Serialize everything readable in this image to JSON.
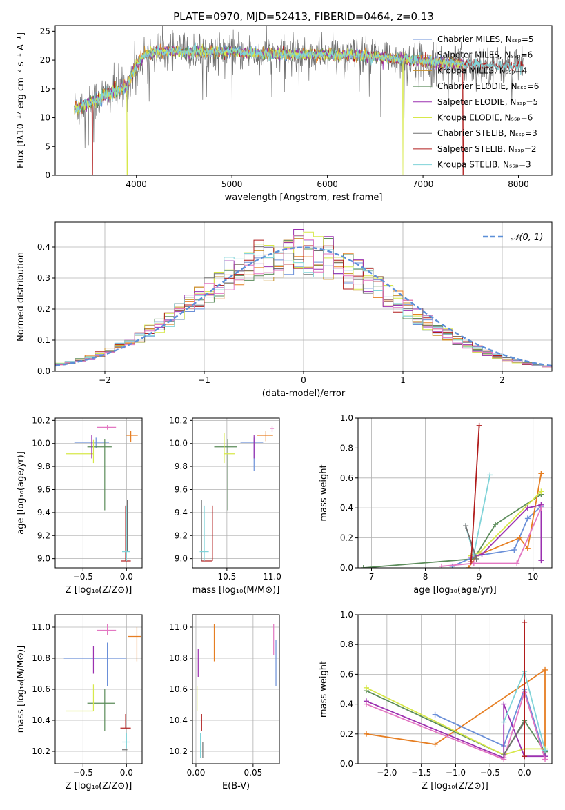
{
  "colors": {
    "Chabrier MILES": "#6a8fd8",
    "Salpeter MILES": "#e67e22",
    "Kroupa MILES": "#c8912a",
    "Chabrier ELODIE": "#5b8c5a",
    "Salpeter ELODIE": "#9b30b0",
    "Kroupa ELODIE": "#d7e84a",
    "Chabrier STELIB": "#707070",
    "Salpeter STELIB": "#b01c1c",
    "Kroupa STELIB": "#7fd3d8",
    "pink": "#e377c2",
    "gauss": "#5b8fd8"
  },
  "chart_data": [
    {
      "id": "spectrum",
      "type": "line",
      "title": "PLATE=0970, MJD=52413, FIBERID=0464, z=0.13",
      "xlabel": "wavelength [Angstrom, rest frame]",
      "ylabel": "Flux [fλ10⁻¹⁷ erg cm⁻² s⁻¹ A⁻¹]",
      "xlim": [
        3150,
        8350
      ],
      "ylim": [
        0,
        26
      ],
      "xticks": [
        4000,
        5000,
        6000,
        7000,
        8000
      ],
      "yticks": [
        0,
        5,
        10,
        15,
        20,
        25
      ],
      "grid": false,
      "legend_position": "top-right",
      "legend": [
        "Chabrier MILES, Nₛₛₚ=5",
        "Salpeter MILES, Nₛₛₚ=6",
        "Kroupa MILES, Nₛₛₚ=4",
        "Chabrier ELODIE, Nₛₛₚ=6",
        "Salpeter ELODIE, Nₛₛₚ=5",
        "Kroupa ELODIE, Nₛₛₚ=6",
        "Chabrier STELIB, Nₛₛₚ=3",
        "Salpeter STELIB, Nₛₛₚ=2",
        "Kroupa STELIB, Nₛₛₚ=3"
      ],
      "continuum": {
        "x": [
          3350,
          3500,
          3700,
          3900,
          4000,
          4100,
          4200,
          4400,
          4600,
          4800,
          5000,
          5200,
          5500,
          5800,
          6000,
          6300,
          6600,
          6900,
          7200,
          7500,
          7800,
          8050
        ],
        "y": [
          11.5,
          12.5,
          14,
          15.5,
          19,
          21,
          21.5,
          21.5,
          21.3,
          21.5,
          21.5,
          21.2,
          21,
          21,
          21,
          20.8,
          20.5,
          20,
          19.5,
          19.3,
          19,
          18.8
        ]
      }
    },
    {
      "id": "residuals",
      "type": "step-histogram",
      "xlabel": "(data-model)/error",
      "ylabel": "Normed distribution",
      "xlim": [
        -2.5,
        2.5
      ],
      "ylim": [
        0,
        0.48
      ],
      "xticks": [
        -2,
        -1,
        0,
        1,
        2
      ],
      "yticks": [
        0.0,
        0.1,
        0.2,
        0.3,
        0.4
      ],
      "grid": true,
      "legend_position": "top-right",
      "legend": [
        "𝒩(0, 1)"
      ],
      "bin_width": 0.1
    },
    {
      "id": "age-vs-Z",
      "type": "errorbar",
      "xlabel": "Z [log₁₀(Z/Z⊙)]",
      "ylabel": "age  [log₁₀(age/yr)]",
      "xlim": [
        -0.82,
        0.18
      ],
      "ylim": [
        8.92,
        10.22
      ],
      "xticks": [
        -0.5,
        0.0
      ],
      "yticks": [
        9.0,
        9.2,
        9.4,
        9.6,
        9.8,
        10.0,
        10.2
      ],
      "grid": true,
      "points": [
        {
          "c": "Chabrier MILES",
          "x": -0.35,
          "xerr": [
            0.25,
            0.15
          ],
          "y": 10.01,
          "yerr": [
            0.05,
            0.04
          ]
        },
        {
          "c": "Salpeter MILES",
          "x": 0.05,
          "xerr": [
            0.05,
            0.08
          ],
          "y": 10.07,
          "yerr": [
            0.06,
            0.04
          ]
        },
        {
          "c": "pink",
          "x": -0.22,
          "xerr": [
            0.12,
            0.1
          ],
          "y": 10.14,
          "yerr": [
            0.02,
            0.02
          ]
        },
        {
          "c": "Chabrier ELODIE",
          "x": -0.25,
          "xerr": [
            0.2,
            0.08
          ],
          "y": 9.97,
          "yerr": [
            0.55,
            0.07
          ]
        },
        {
          "c": "Kroupa ELODIE",
          "x": -0.38,
          "xerr": [
            0.32,
            0.0
          ],
          "y": 9.91,
          "yerr": [
            0.08,
            0.12
          ]
        },
        {
          "c": "Salpeter ELODIE",
          "x": -0.4,
          "xerr": [
            0.0,
            0.0
          ],
          "y": 9.99,
          "yerr": [
            0.12,
            0.08
          ]
        },
        {
          "c": "Salpeter STELIB",
          "x": -0.01,
          "xerr": [
            0.05,
            0.06
          ],
          "y": 8.98,
          "yerr": [
            0.0,
            0.48
          ]
        },
        {
          "c": "Chabrier STELIB",
          "x": 0.01,
          "xerr": [
            0.0,
            0.0
          ],
          "y": 9.06,
          "yerr": [
            0.0,
            0.45
          ]
        },
        {
          "c": "Kroupa STELIB",
          "x": 0.0,
          "xerr": [
            0.05,
            0.04
          ],
          "y": 9.06,
          "yerr": [
            0.08,
            0.4
          ]
        }
      ]
    },
    {
      "id": "age-vs-mass",
      "type": "errorbar",
      "xlabel": "mass [log₁₀(M/M⊙)]",
      "ylabel": "",
      "xlim": [
        10.12,
        11.08
      ],
      "ylim": [
        8.92,
        10.22
      ],
      "xticks": [
        10.5,
        11.0
      ],
      "yticks": [
        9.0,
        9.2,
        9.4,
        9.6,
        9.8,
        10.0,
        10.2
      ],
      "grid": true,
      "points": [
        {
          "c": "Chabrier MILES",
          "x": 10.8,
          "xerr": [
            0.15,
            0.1
          ],
          "y": 10.01,
          "yerr": [
            0.25,
            0.04
          ]
        },
        {
          "c": "Salpeter MILES",
          "x": 10.93,
          "xerr": [
            0.1,
            0.08
          ],
          "y": 10.07,
          "yerr": [
            0.05,
            0.04
          ]
        },
        {
          "c": "pink",
          "x": 11.0,
          "xerr": [
            0.02,
            0.02
          ],
          "y": 10.13,
          "yerr": [
            0.03,
            0.02
          ]
        },
        {
          "c": "Chabrier ELODIE",
          "x": 10.51,
          "xerr": [
            0.15,
            0.1
          ],
          "y": 9.97,
          "yerr": [
            0.55,
            0.07
          ]
        },
        {
          "c": "Kroupa ELODIE",
          "x": 10.47,
          "xerr": [
            0.0,
            0.12
          ],
          "y": 9.91,
          "yerr": [
            0.08,
            0.18
          ]
        },
        {
          "c": "Salpeter ELODIE",
          "x": 10.8,
          "xerr": [
            0.0,
            0.0
          ],
          "y": 9.99,
          "yerr": [
            0.12,
            0.08
          ]
        },
        {
          "c": "Chabrier STELIB",
          "x": 10.22,
          "xerr": [
            0.0,
            0.0
          ],
          "y": 9.06,
          "yerr": [
            0.08,
            0.45
          ]
        },
        {
          "c": "Salpeter STELIB",
          "x": 10.34,
          "xerr": [
            0.12,
            0.0
          ],
          "y": 8.98,
          "yerr": [
            0.0,
            0.48
          ]
        },
        {
          "c": "Kroupa STELIB",
          "x": 10.25,
          "xerr": [
            0.05,
            0.05
          ],
          "y": 9.06,
          "yerr": [
            0.08,
            0.4
          ]
        }
      ]
    },
    {
      "id": "weight-vs-age",
      "type": "line",
      "xlabel": "age  [log₁₀(age/yr)]",
      "ylabel": "mass weight",
      "xlim": [
        6.75,
        10.35
      ],
      "ylim": [
        0,
        1.0
      ],
      "xticks": [
        7,
        8,
        9,
        10
      ],
      "yticks": [
        0.0,
        0.2,
        0.4,
        0.6,
        0.8,
        1.0
      ],
      "grid": true,
      "series": [
        {
          "c": "Chabrier ELODIE",
          "x": [
            6.85,
            8.9,
            9.3,
            10.15
          ],
          "y": [
            0.0,
            0.06,
            0.29,
            0.49
          ]
        },
        {
          "c": "Chabrier MILES",
          "x": [
            8.5,
            8.95,
            9.65,
            9.9,
            10.15
          ],
          "y": [
            0.01,
            0.08,
            0.12,
            0.33,
            0.41
          ]
        },
        {
          "c": "Salpeter MILES",
          "x": [
            8.8,
            8.95,
            9.75,
            9.9,
            10.15
          ],
          "y": [
            0.0,
            0.08,
            0.2,
            0.13,
            0.63
          ]
        },
        {
          "c": "Kroupa ELODIE",
          "x": [
            8.85,
            9.0,
            10.15
          ],
          "y": [
            0.08,
            0.1,
            0.51
          ]
        },
        {
          "c": "Salpeter ELODIE",
          "x": [
            8.85,
            9.05,
            9.9,
            10.15,
            10.15
          ],
          "y": [
            0.07,
            0.09,
            0.4,
            0.42,
            0.05
          ]
        },
        {
          "c": "pink",
          "x": [
            8.3,
            8.9,
            9.7,
            10.15
          ],
          "y": [
            0.01,
            0.03,
            0.03,
            0.4
          ]
        },
        {
          "c": "Kroupa STELIB",
          "x": [
            8.75,
            8.9,
            9.2
          ],
          "y": [
            0.28,
            0.09,
            0.62
          ]
        },
        {
          "c": "Chabrier STELIB",
          "x": [
            8.75,
            8.95
          ],
          "y": [
            0.28,
            0.06
          ]
        },
        {
          "c": "Salpeter STELIB",
          "x": [
            8.85,
            9.0
          ],
          "y": [
            0.04,
            0.95
          ]
        }
      ]
    },
    {
      "id": "mass-vs-Z",
      "type": "errorbar",
      "xlabel": "Z [log₁₀(Z/Z⊙)]",
      "ylabel": "mass [log₁₀(M/M⊙)]",
      "xlim": [
        -0.82,
        0.18
      ],
      "ylim": [
        10.12,
        11.08
      ],
      "xticks": [
        -0.5,
        0.0
      ],
      "yticks": [
        10.2,
        10.4,
        10.6,
        10.8,
        11.0
      ],
      "grid": true,
      "points": [
        {
          "c": "Chabrier MILES",
          "x": -0.22,
          "xerr": [
            0.5,
            0.22
          ],
          "y": 10.8,
          "yerr": [
            0.18,
            0.1
          ]
        },
        {
          "c": "Salpeter MILES",
          "x": 0.12,
          "xerr": [
            0.1,
            0.05
          ],
          "y": 10.94,
          "yerr": [
            0.16,
            0.06
          ]
        },
        {
          "c": "pink",
          "x": -0.22,
          "xerr": [
            0.12,
            0.1
          ],
          "y": 10.98,
          "yerr": [
            0.03,
            0.04
          ]
        },
        {
          "c": "Salpeter ELODIE",
          "x": -0.38,
          "xerr": [
            0.0,
            0.0
          ],
          "y": 10.8,
          "yerr": [
            0.1,
            0.08
          ]
        },
        {
          "c": "Chabrier ELODIE",
          "x": -0.25,
          "xerr": [
            0.2,
            0.12
          ],
          "y": 10.51,
          "yerr": [
            0.18,
            0.09
          ]
        },
        {
          "c": "Kroupa ELODIE",
          "x": -0.38,
          "xerr": [
            0.32,
            0.0
          ],
          "y": 10.46,
          "yerr": [
            0.0,
            0.17
          ]
        },
        {
          "c": "Salpeter STELIB",
          "x": -0.01,
          "xerr": [
            0.06,
            0.06
          ],
          "y": 10.35,
          "yerr": [
            0.0,
            0.09
          ]
        },
        {
          "c": "Kroupa STELIB",
          "x": 0.0,
          "xerr": [
            0.05,
            0.04
          ],
          "y": 10.26,
          "yerr": [
            0.04,
            0.06
          ]
        },
        {
          "c": "Chabrier STELIB",
          "x": 0.01,
          "xerr": [
            0.06,
            0.0
          ],
          "y": 10.21,
          "yerr": [
            0.0,
            0.0
          ]
        }
      ]
    },
    {
      "id": "mass-vs-ebv",
      "type": "errorbar",
      "xlabel": "E(B-V)",
      "ylabel": "",
      "xlim": [
        -0.003,
        0.073
      ],
      "ylim": [
        10.12,
        11.08
      ],
      "xticks": [
        0.0,
        0.05
      ],
      "yticks": [
        10.2,
        10.4,
        10.6,
        10.8,
        11.0
      ],
      "grid": true,
      "points": [
        {
          "c": "Salpeter MILES",
          "x": 0.016,
          "xerr": [
            0.0,
            0.0
          ],
          "y": 10.94,
          "yerr": [
            0.16,
            0.08
          ]
        },
        {
          "c": "pink",
          "x": 0.068,
          "xerr": [
            0.0,
            0.0
          ],
          "y": 10.98,
          "yerr": [
            0.16,
            0.04
          ]
        },
        {
          "c": "Chabrier MILES",
          "x": 0.07,
          "xerr": [
            0.0,
            0.0
          ],
          "y": 10.8,
          "yerr": [
            0.18,
            0.12
          ]
        },
        {
          "c": "Salpeter ELODIE",
          "x": 0.002,
          "xerr": [
            0.0,
            0.0
          ],
          "y": 10.8,
          "yerr": [
            0.12,
            0.06
          ]
        },
        {
          "c": "Kroupa ELODIE",
          "x": 0.001,
          "xerr": [
            0.0,
            0.0
          ],
          "y": 10.46,
          "yerr": [
            0.0,
            0.16
          ]
        },
        {
          "c": "Salpeter STELIB",
          "x": 0.005,
          "xerr": [
            0.0,
            0.0
          ],
          "y": 10.35,
          "yerr": [
            0.02,
            0.09
          ]
        },
        {
          "c": "Kroupa STELIB",
          "x": 0.004,
          "xerr": [
            0.0,
            0.0
          ],
          "y": 10.26,
          "yerr": [
            0.1,
            0.06
          ]
        },
        {
          "c": "Chabrier STELIB",
          "x": 0.006,
          "xerr": [
            0.0,
            0.0
          ],
          "y": 10.21,
          "yerr": [
            0.05,
            0.05
          ]
        }
      ]
    },
    {
      "id": "weight-vs-Z",
      "type": "line",
      "xlabel": "Z [log₁₀(Z/Z⊙)]",
      "ylabel": "mass weight",
      "xlim": [
        -2.42,
        0.4
      ],
      "ylim": [
        0,
        1.0
      ],
      "xticks": [
        -2.0,
        -1.5,
        -1.0,
        -0.5,
        0.0
      ],
      "yticks": [
        0.0,
        0.2,
        0.4,
        0.6,
        0.8,
        1.0
      ],
      "grid": true,
      "series": [
        {
          "c": "Salpeter MILES",
          "x": [
            -2.3,
            -1.3,
            0.3,
            0.3
          ],
          "y": [
            0.2,
            0.13,
            0.63,
            0.05
          ]
        },
        {
          "c": "Chabrier MILES",
          "x": [
            -1.3,
            -0.3,
            0.0,
            0.3
          ],
          "y": [
            0.33,
            0.12,
            0.5,
            0.05
          ]
        },
        {
          "c": "Chabrier ELODIE",
          "x": [
            -2.3,
            -0.3,
            0.0,
            0.3
          ],
          "y": [
            0.49,
            0.06,
            0.29,
            0.08
          ]
        },
        {
          "c": "Kroupa ELODIE",
          "x": [
            -2.3,
            -0.3,
            0.0,
            0.3
          ],
          "y": [
            0.51,
            0.06,
            0.1,
            0.1
          ]
        },
        {
          "c": "Salpeter ELODIE",
          "x": [
            -2.3,
            -0.3,
            -0.3,
            0.0,
            0.3
          ],
          "y": [
            0.42,
            0.04,
            0.4,
            0.05,
            0.05
          ]
        },
        {
          "c": "pink",
          "x": [
            -2.3,
            -0.3,
            0.0,
            0.3
          ],
          "y": [
            0.4,
            0.03,
            0.48,
            0.03
          ]
        },
        {
          "c": "Kroupa STELIB",
          "x": [
            -0.3,
            0.0,
            0.3
          ],
          "y": [
            0.28,
            0.62,
            0.09
          ]
        },
        {
          "c": "Chabrier STELIB",
          "x": [
            -0.3,
            0.0
          ],
          "y": [
            0.06,
            0.28
          ]
        },
        {
          "c": "Salpeter STELIB",
          "x": [
            0.0,
            0.0
          ],
          "y": [
            0.95,
            0.05
          ]
        }
      ]
    }
  ]
}
